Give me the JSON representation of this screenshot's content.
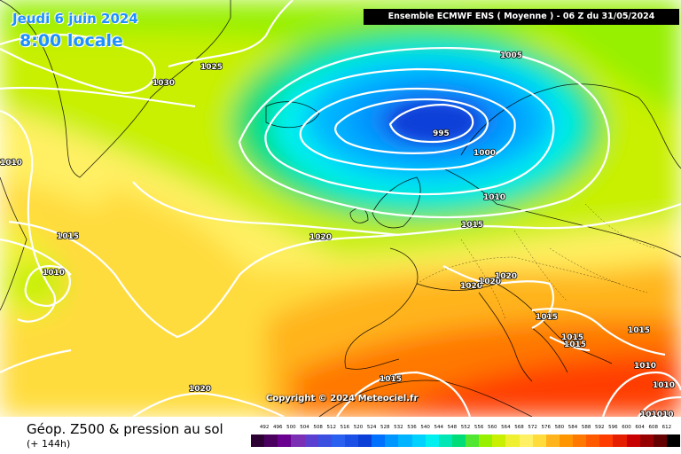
{
  "map": {
    "date_title": "Jeudi 6 juin 2024",
    "local_time": "8:00 locale",
    "header": "Ensemble ECMWF ENS  ( Moyenne )  -  06 Z du 31/05/2024",
    "copyright": "Copyright © 2024 Meteociel.fr",
    "product_title": "Géop. Z500 & pression au sol",
    "forecast_step": "(+ 144h)"
  },
  "legend": {
    "values": [
      "492",
      "496",
      "500",
      "504",
      "508",
      "512",
      "516",
      "520",
      "524",
      "528",
      "532",
      "536",
      "540",
      "544",
      "548",
      "552",
      "556",
      "560",
      "564",
      "568",
      "572",
      "576",
      "580",
      "584",
      "588",
      "592",
      "596",
      "600",
      "604",
      "608",
      "612"
    ],
    "colors": [
      "#2c0033",
      "#4b0060",
      "#6a0090",
      "#7a2fb5",
      "#5a3fd0",
      "#3b4fe0",
      "#2a60f0",
      "#1c4fe6",
      "#0a3fd8",
      "#0070ff",
      "#0096ff",
      "#00b4ff",
      "#00d2ff",
      "#00f0f0",
      "#00e6b4",
      "#00dc78",
      "#50e632",
      "#96f000",
      "#c8f000",
      "#f0f032",
      "#fff064",
      "#ffdc3c",
      "#ffb41e",
      "#ff9600",
      "#ff7800",
      "#ff5a00",
      "#ff3c00",
      "#e61e00",
      "#c80000",
      "#960000",
      "#640000",
      "#000000"
    ]
  },
  "isobars": [
    {
      "label": "1030"
    },
    {
      "label": "1025"
    },
    {
      "label": "1005"
    },
    {
      "label": "995"
    },
    {
      "label": "1000"
    },
    {
      "label": "1010"
    },
    {
      "label": "1010"
    },
    {
      "label": "1015"
    },
    {
      "label": "1015"
    },
    {
      "label": "1020"
    },
    {
      "label": "1010"
    },
    {
      "label": "1020"
    },
    {
      "label": "1020"
    },
    {
      "label": "1020"
    },
    {
      "label": "1015"
    },
    {
      "label": "1015"
    },
    {
      "label": "1015"
    },
    {
      "label": "1015"
    },
    {
      "label": "1010"
    },
    {
      "label": "1010"
    },
    {
      "label": "1015"
    },
    {
      "label": "1020"
    },
    {
      "label": "101010"
    }
  ]
}
